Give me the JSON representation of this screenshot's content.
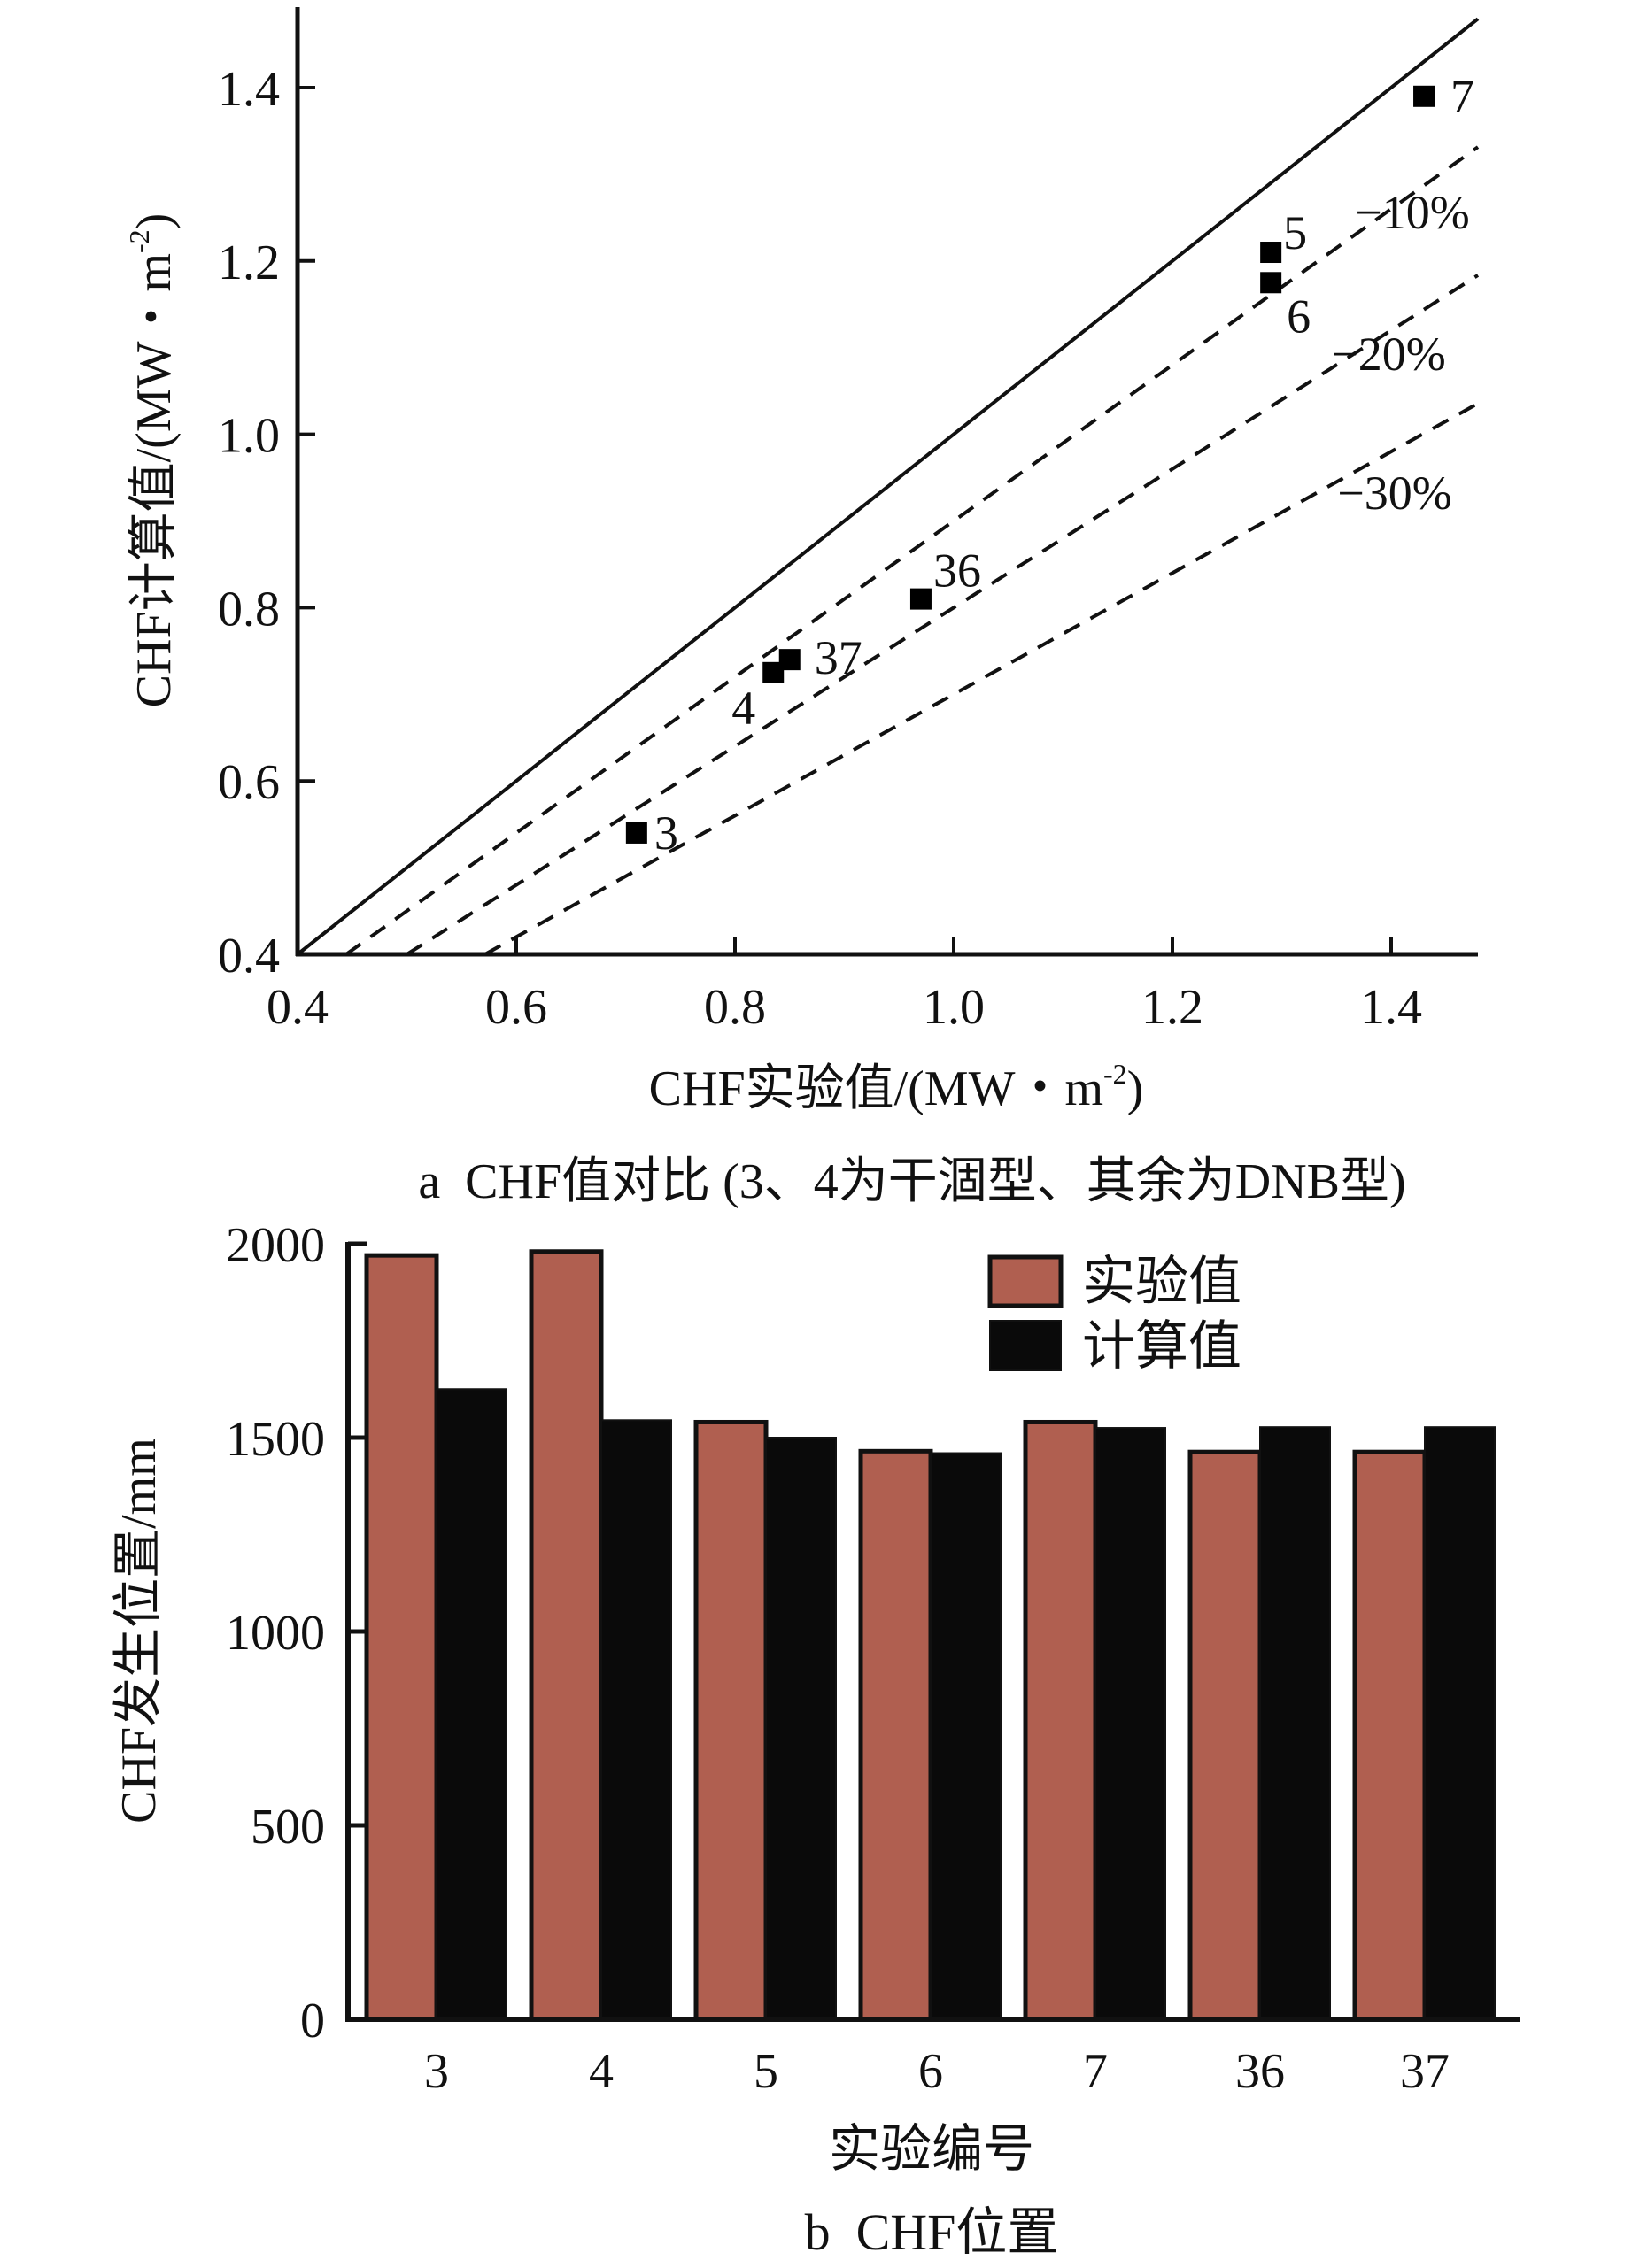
{
  "chart_data": [
    {
      "type": "scatter",
      "panel": "a",
      "caption": "a  CHF值对比 (3、4为干涸型、其余为DNB型)",
      "xlabel": "CHF实验值/(MW・m⁻²)",
      "xlabel_main": "CHF实验值/(MW・m",
      "xlabel_sup": "-2",
      "xlabel_close": ")",
      "ylabel_main": "CHF计算值/(MW・m",
      "ylabel_sup": "-2",
      "ylabel_close": ")",
      "xlim": [
        0.4,
        1.5
      ],
      "ylim": [
        0.4,
        1.5
      ],
      "xticks": [
        {
          "value": 0.4,
          "label": "0.4"
        },
        {
          "value": 0.6,
          "label": "0.6"
        },
        {
          "value": 0.8,
          "label": "0.8"
        },
        {
          "value": 1.0,
          "label": "1.0"
        },
        {
          "value": 1.2,
          "label": "1.2"
        },
        {
          "value": 1.4,
          "label": "1.4"
        }
      ],
      "yticks": [
        {
          "value": 0.4,
          "label": "0.4"
        },
        {
          "value": 0.6,
          "label": "0.6"
        },
        {
          "value": 0.8,
          "label": "0.8"
        },
        {
          "value": 1.0,
          "label": "1.0"
        },
        {
          "value": 1.2,
          "label": "1.2"
        },
        {
          "value": 1.4,
          "label": "1.4"
        }
      ],
      "grid": false,
      "points": [
        {
          "label": "3",
          "x": 0.71,
          "y": 0.54
        },
        {
          "label": "4",
          "x": 0.835,
          "y": 0.725
        },
        {
          "label": "37",
          "x": 0.85,
          "y": 0.74
        },
        {
          "label": "36",
          "x": 0.97,
          "y": 0.81
        },
        {
          "label": "5",
          "x": 1.29,
          "y": 1.21
        },
        {
          "label": "6",
          "x": 1.29,
          "y": 1.175
        },
        {
          "label": "7",
          "x": 1.43,
          "y": 1.39
        }
      ],
      "reference_lines": [
        {
          "name": "y=x",
          "slope": 1.0,
          "style": "solid",
          "label": ""
        },
        {
          "name": "-10%",
          "slope": 0.9,
          "style": "dashed",
          "label": "−10%"
        },
        {
          "name": "-20%",
          "slope": 0.8,
          "style": "dashed",
          "label": "−20%"
        },
        {
          "name": "-30%",
          "slope": 0.7,
          "style": "dashed",
          "label": "−30%"
        }
      ],
      "marker_color": "#000000"
    },
    {
      "type": "bar",
      "panel": "b",
      "caption": "b  CHF位置",
      "xlabel": "实验编号",
      "ylabel": "CHF发生位置/mm",
      "categories": [
        "3",
        "4",
        "5",
        "6",
        "7",
        "36",
        "37"
      ],
      "ylim": [
        0,
        2000
      ],
      "yticks": [
        {
          "value": 0,
          "label": "0"
        },
        {
          "value": 500,
          "label": "500"
        },
        {
          "value": 1000,
          "label": "1000"
        },
        {
          "value": 1500,
          "label": "1500"
        },
        {
          "value": 2000,
          "label": "2000"
        }
      ],
      "grid": false,
      "legend_position": "top-right",
      "series": [
        {
          "name": "实验值",
          "color": "#b05f50",
          "values": [
            1970,
            1980,
            1540,
            1465,
            1540,
            1463,
            1463
          ]
        },
        {
          "name": "计算值",
          "color": "#0a0a0a",
          "values": [
            1625,
            1545,
            1500,
            1460,
            1525,
            1527,
            1527
          ]
        }
      ]
    }
  ]
}
